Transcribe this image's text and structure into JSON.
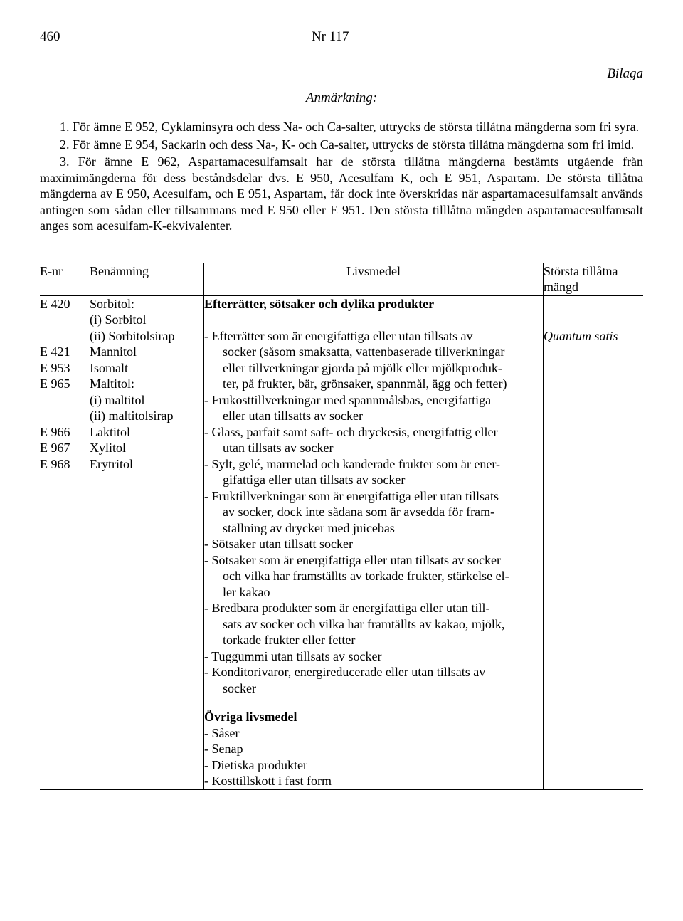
{
  "header": {
    "page_number": "460",
    "doc_number": "Nr 117",
    "attachment_label": "Bilaga",
    "remark_label": "Anmärkning:"
  },
  "paragraphs": {
    "p1": "1. För ämne E 952, Cyklaminsyra och dess Na- och Ca-salter, uttrycks de största tillåtna mängderna som fri syra.",
    "p2": "2. För ämne E 954, Sackarin och dess Na-, K- och Ca-salter, uttrycks de största tillåtna mängderna som fri imid.",
    "p3": "3. För ämne E 962, Aspartamacesulfamsalt har de största tillåtna mängderna bestämts utgående från maximimängderna för dess beståndsdelar dvs. E 950, Acesulfam K, och E 951, Aspartam. De största tillåtna mängderna av E 950, Acesulfam, och E 951, Aspartam, får dock inte överskridas när aspartamacesulfamsalt används antingen som sådan eller tillsammans med E 950 eller E 951. Den största tilllåtna mängden aspartamacesulfamsalt anges som acesulfam-K-ekvivalenter."
  },
  "table": {
    "headers": {
      "enr": "E-nr",
      "benamning": "Benämning",
      "livsmedel": "Livsmedel",
      "amount": "Största tillåtna mängd"
    },
    "left_items": [
      {
        "code": "E 420",
        "name": "Sorbitol:"
      },
      {
        "code": "",
        "name": "(i) Sorbitol"
      },
      {
        "code": "",
        "name": "(ii) Sorbitolsirap"
      },
      {
        "code": "E 421",
        "name": "Mannitol"
      },
      {
        "code": "E 953",
        "name": "Isomalt"
      },
      {
        "code": "E 965",
        "name": "Maltitol:"
      },
      {
        "code": "",
        "name": "(i) maltitol"
      },
      {
        "code": "",
        "name": "(ii) maltitolsirap"
      },
      {
        "code": "E 966",
        "name": "Laktitol"
      },
      {
        "code": "E 967",
        "name": "Xylitol"
      },
      {
        "code": "E 968",
        "name": "Erytritol"
      }
    ],
    "section1_title": "Efterrätter, sötsaker och dylika produkter",
    "section1_amount": "Quantum satis",
    "section1_items": [
      [
        "- Efterrätter som är energifattiga eller utan tillsats av",
        "socker (såsom smaksatta, vattenbaserade tillverkningar",
        "eller tillverkningar gjorda på mjölk eller mjölkproduk-",
        "ter, på frukter, bär, grönsaker, spannmål, ägg och fetter)"
      ],
      [
        "- Frukosttillverkningar med spannmålsbas, energifattiga",
        "eller utan tillsatts av socker"
      ],
      [
        "- Glass, parfait samt saft- och dryckesis, energifattig eller",
        "utan tillsats av socker"
      ],
      [
        "- Sylt, gelé, marmelad och kanderade frukter som är ener-",
        "gifattiga eller utan tillsats av socker"
      ],
      [
        "- Fruktillverkningar som är energifattiga eller utan tillsats",
        "av socker, dock inte sådana som är avsedda för fram-",
        "ställning av drycker med juicebas"
      ],
      [
        "- Sötsaker utan tillsatt socker"
      ],
      [
        "- Sötsaker som är energifattiga eller utan tillsats av socker",
        "och vilka har framställts av torkade frukter, stärkelse el-",
        "ler kakao"
      ],
      [
        "- Bredbara produkter som är energifattiga eller utan till-",
        "sats av socker och vilka har framtällts av kakao, mjölk,",
        "torkade frukter eller fetter"
      ],
      [
        "- Tuggummi utan tillsats av socker"
      ],
      [
        "- Konditorivaror, energireducerade eller utan tillsats av",
        "socker"
      ]
    ],
    "section2_title": "Övriga livsmedel",
    "section2_items": [
      "- Såser",
      "- Senap",
      "- Dietiska produkter",
      "- Kosttillskott i fast form"
    ]
  }
}
